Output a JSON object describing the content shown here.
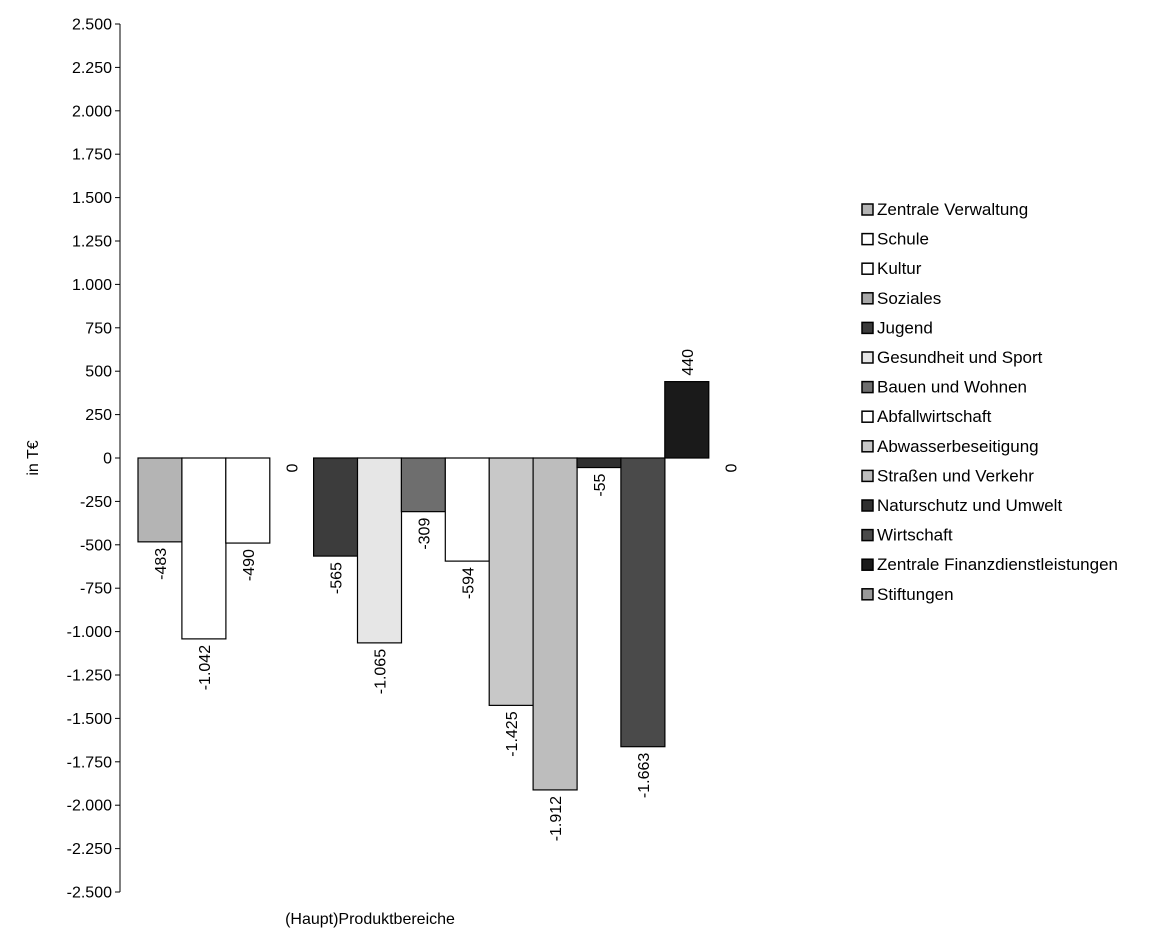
{
  "chart_data": {
    "type": "bar",
    "categories": [
      "Zentrale Verwaltung",
      "Schule",
      "Kultur",
      "Soziales",
      "Jugend",
      "Gesundheit und Sport",
      "Bauen und Wohnen",
      "Abfallwirtschaft",
      "Abwasserbeseitigung",
      "Straßen und Verkehr",
      "Naturschutz und Umwelt",
      "Wirtschaft",
      "Zentrale Finanzdienstleistungen",
      "Stiftungen"
    ],
    "values": [
      -483,
      -1042,
      -490,
      0,
      -565,
      -1065,
      -309,
      -594,
      -1425,
      -1912,
      -55,
      -1663,
      440,
      0
    ],
    "data_labels": [
      "-483",
      "-1.042",
      "-490",
      "0",
      "-565",
      "-1.065",
      "-309",
      "-594",
      "-1.425",
      "-1.912",
      "-55",
      "-1.663",
      "440",
      "0"
    ],
    "colors": [
      "#b4b4b4",
      "#ffffff",
      "#ffffff",
      "#a8a8a8",
      "#3c3c3c",
      "#e6e6e6",
      "#6e6e6e",
      "#ffffff",
      "#c8c8c8",
      "#bdbdbd",
      "#303030",
      "#4a4a4a",
      "#1a1a1a",
      "#9a9a9a"
    ],
    "xlabel": "(Haupt)Produktbereiche",
    "ylabel": "in T€",
    "ylim": [
      -2500,
      2500
    ],
    "y_ticks": [
      2500,
      2250,
      2000,
      1750,
      1500,
      1250,
      1000,
      750,
      500,
      250,
      0,
      -250,
      -500,
      -750,
      -1000,
      -1250,
      -1500,
      -1750,
      -2000,
      -2250,
      -2500
    ],
    "y_tick_labels": [
      "2.500",
      "2.250",
      "2.000",
      "1.750",
      "1.500",
      "1.250",
      "1.000",
      "750",
      "500",
      "250",
      "0",
      "-250",
      "-500",
      "-750",
      "-1.000",
      "-1.250",
      "-1.500",
      "-1.750",
      "-2.000",
      "-2.250",
      "-2.500"
    ],
    "grid": false,
    "legend_position": "right"
  }
}
